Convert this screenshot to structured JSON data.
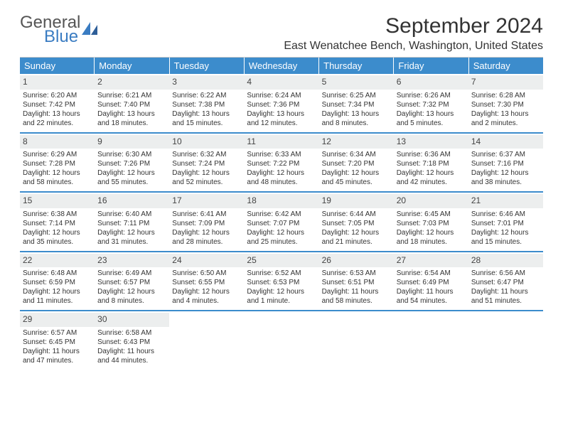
{
  "brand": {
    "line1": "General",
    "line2": "Blue"
  },
  "title": "September 2024",
  "location": "East Wenatchee Bench, Washington, United States",
  "colors": {
    "header_bg": "#3c8ccc",
    "header_text": "#ffffff",
    "daynum_bg": "#eceeee",
    "week_border": "#3c8ccc",
    "brand_accent": "#3a7cc2",
    "body_text": "#333333"
  },
  "typography": {
    "title_fontsize": 30,
    "location_fontsize": 16,
    "dow_fontsize": 13,
    "daynum_fontsize": 12,
    "detail_fontsize": 10
  },
  "days_of_week": [
    "Sunday",
    "Monday",
    "Tuesday",
    "Wednesday",
    "Thursday",
    "Friday",
    "Saturday"
  ],
  "weeks": [
    [
      {
        "num": "1",
        "sunrise": "Sunrise: 6:20 AM",
        "sunset": "Sunset: 7:42 PM",
        "daylight1": "Daylight: 13 hours",
        "daylight2": "and 22 minutes."
      },
      {
        "num": "2",
        "sunrise": "Sunrise: 6:21 AM",
        "sunset": "Sunset: 7:40 PM",
        "daylight1": "Daylight: 13 hours",
        "daylight2": "and 18 minutes."
      },
      {
        "num": "3",
        "sunrise": "Sunrise: 6:22 AM",
        "sunset": "Sunset: 7:38 PM",
        "daylight1": "Daylight: 13 hours",
        "daylight2": "and 15 minutes."
      },
      {
        "num": "4",
        "sunrise": "Sunrise: 6:24 AM",
        "sunset": "Sunset: 7:36 PM",
        "daylight1": "Daylight: 13 hours",
        "daylight2": "and 12 minutes."
      },
      {
        "num": "5",
        "sunrise": "Sunrise: 6:25 AM",
        "sunset": "Sunset: 7:34 PM",
        "daylight1": "Daylight: 13 hours",
        "daylight2": "and 8 minutes."
      },
      {
        "num": "6",
        "sunrise": "Sunrise: 6:26 AM",
        "sunset": "Sunset: 7:32 PM",
        "daylight1": "Daylight: 13 hours",
        "daylight2": "and 5 minutes."
      },
      {
        "num": "7",
        "sunrise": "Sunrise: 6:28 AM",
        "sunset": "Sunset: 7:30 PM",
        "daylight1": "Daylight: 13 hours",
        "daylight2": "and 2 minutes."
      }
    ],
    [
      {
        "num": "8",
        "sunrise": "Sunrise: 6:29 AM",
        "sunset": "Sunset: 7:28 PM",
        "daylight1": "Daylight: 12 hours",
        "daylight2": "and 58 minutes."
      },
      {
        "num": "9",
        "sunrise": "Sunrise: 6:30 AM",
        "sunset": "Sunset: 7:26 PM",
        "daylight1": "Daylight: 12 hours",
        "daylight2": "and 55 minutes."
      },
      {
        "num": "10",
        "sunrise": "Sunrise: 6:32 AM",
        "sunset": "Sunset: 7:24 PM",
        "daylight1": "Daylight: 12 hours",
        "daylight2": "and 52 minutes."
      },
      {
        "num": "11",
        "sunrise": "Sunrise: 6:33 AM",
        "sunset": "Sunset: 7:22 PM",
        "daylight1": "Daylight: 12 hours",
        "daylight2": "and 48 minutes."
      },
      {
        "num": "12",
        "sunrise": "Sunrise: 6:34 AM",
        "sunset": "Sunset: 7:20 PM",
        "daylight1": "Daylight: 12 hours",
        "daylight2": "and 45 minutes."
      },
      {
        "num": "13",
        "sunrise": "Sunrise: 6:36 AM",
        "sunset": "Sunset: 7:18 PM",
        "daylight1": "Daylight: 12 hours",
        "daylight2": "and 42 minutes."
      },
      {
        "num": "14",
        "sunrise": "Sunrise: 6:37 AM",
        "sunset": "Sunset: 7:16 PM",
        "daylight1": "Daylight: 12 hours",
        "daylight2": "and 38 minutes."
      }
    ],
    [
      {
        "num": "15",
        "sunrise": "Sunrise: 6:38 AM",
        "sunset": "Sunset: 7:14 PM",
        "daylight1": "Daylight: 12 hours",
        "daylight2": "and 35 minutes."
      },
      {
        "num": "16",
        "sunrise": "Sunrise: 6:40 AM",
        "sunset": "Sunset: 7:11 PM",
        "daylight1": "Daylight: 12 hours",
        "daylight2": "and 31 minutes."
      },
      {
        "num": "17",
        "sunrise": "Sunrise: 6:41 AM",
        "sunset": "Sunset: 7:09 PM",
        "daylight1": "Daylight: 12 hours",
        "daylight2": "and 28 minutes."
      },
      {
        "num": "18",
        "sunrise": "Sunrise: 6:42 AM",
        "sunset": "Sunset: 7:07 PM",
        "daylight1": "Daylight: 12 hours",
        "daylight2": "and 25 minutes."
      },
      {
        "num": "19",
        "sunrise": "Sunrise: 6:44 AM",
        "sunset": "Sunset: 7:05 PM",
        "daylight1": "Daylight: 12 hours",
        "daylight2": "and 21 minutes."
      },
      {
        "num": "20",
        "sunrise": "Sunrise: 6:45 AM",
        "sunset": "Sunset: 7:03 PM",
        "daylight1": "Daylight: 12 hours",
        "daylight2": "and 18 minutes."
      },
      {
        "num": "21",
        "sunrise": "Sunrise: 6:46 AM",
        "sunset": "Sunset: 7:01 PM",
        "daylight1": "Daylight: 12 hours",
        "daylight2": "and 15 minutes."
      }
    ],
    [
      {
        "num": "22",
        "sunrise": "Sunrise: 6:48 AM",
        "sunset": "Sunset: 6:59 PM",
        "daylight1": "Daylight: 12 hours",
        "daylight2": "and 11 minutes."
      },
      {
        "num": "23",
        "sunrise": "Sunrise: 6:49 AM",
        "sunset": "Sunset: 6:57 PM",
        "daylight1": "Daylight: 12 hours",
        "daylight2": "and 8 minutes."
      },
      {
        "num": "24",
        "sunrise": "Sunrise: 6:50 AM",
        "sunset": "Sunset: 6:55 PM",
        "daylight1": "Daylight: 12 hours",
        "daylight2": "and 4 minutes."
      },
      {
        "num": "25",
        "sunrise": "Sunrise: 6:52 AM",
        "sunset": "Sunset: 6:53 PM",
        "daylight1": "Daylight: 12 hours",
        "daylight2": "and 1 minute."
      },
      {
        "num": "26",
        "sunrise": "Sunrise: 6:53 AM",
        "sunset": "Sunset: 6:51 PM",
        "daylight1": "Daylight: 11 hours",
        "daylight2": "and 58 minutes."
      },
      {
        "num": "27",
        "sunrise": "Sunrise: 6:54 AM",
        "sunset": "Sunset: 6:49 PM",
        "daylight1": "Daylight: 11 hours",
        "daylight2": "and 54 minutes."
      },
      {
        "num": "28",
        "sunrise": "Sunrise: 6:56 AM",
        "sunset": "Sunset: 6:47 PM",
        "daylight1": "Daylight: 11 hours",
        "daylight2": "and 51 minutes."
      }
    ],
    [
      {
        "num": "29",
        "sunrise": "Sunrise: 6:57 AM",
        "sunset": "Sunset: 6:45 PM",
        "daylight1": "Daylight: 11 hours",
        "daylight2": "and 47 minutes."
      },
      {
        "num": "30",
        "sunrise": "Sunrise: 6:58 AM",
        "sunset": "Sunset: 6:43 PM",
        "daylight1": "Daylight: 11 hours",
        "daylight2": "and 44 minutes."
      },
      {
        "empty": true
      },
      {
        "empty": true
      },
      {
        "empty": true
      },
      {
        "empty": true
      },
      {
        "empty": true
      }
    ]
  ]
}
